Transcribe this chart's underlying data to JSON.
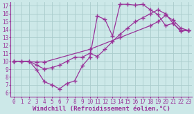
{
  "background_color": "#cce8e8",
  "grid_color": "#aacccc",
  "line_color": "#993399",
  "marker": "+",
  "markersize": 4,
  "linewidth": 0.9,
  "xlabel": "Windchill (Refroidissement éolien,°C)",
  "xlabel_fontsize": 6.5,
  "tick_fontsize": 5.5,
  "xlim": [
    -0.5,
    23.5
  ],
  "ylim": [
    5.5,
    17.5
  ],
  "xticks": [
    0,
    1,
    2,
    3,
    4,
    5,
    6,
    7,
    8,
    9,
    10,
    11,
    12,
    13,
    14,
    15,
    16,
    17,
    18,
    19,
    20,
    21,
    22,
    23
  ],
  "yticks": [
    6,
    7,
    8,
    9,
    10,
    11,
    12,
    13,
    14,
    15,
    16,
    17
  ],
  "lines": [
    {
      "x": [
        0,
        1,
        2,
        3,
        4,
        5,
        6,
        7,
        8,
        9,
        10,
        11,
        12,
        13,
        14,
        15,
        16,
        17,
        18,
        19,
        20,
        21,
        22,
        23
      ],
      "y": [
        10,
        10,
        10,
        8.9,
        7.4,
        7.0,
        6.5,
        7.2,
        7.5,
        9.4,
        10.5,
        15.7,
        15.3,
        13.2,
        17.2,
        17.2,
        17.1,
        17.2,
        16.5,
        15.9,
        14.5,
        14.8,
        13.8,
        13.9
      ]
    },
    {
      "x": [
        0,
        1,
        2,
        3,
        4,
        5,
        6,
        7,
        8,
        9,
        10,
        11,
        12,
        13,
        14,
        15,
        16,
        17,
        18,
        19,
        20,
        21,
        22,
        23
      ],
      "y": [
        10,
        10,
        10,
        9.5,
        9.0,
        9.2,
        9.5,
        10.0,
        10.5,
        10.5,
        11.0,
        10.6,
        11.5,
        12.5,
        13.4,
        14.2,
        15.0,
        15.5,
        16.0,
        16.5,
        16.0,
        14.8,
        13.9,
        13.9
      ]
    },
    {
      "x": [
        0,
        3,
        4,
        10,
        14,
        18,
        19,
        20,
        21,
        22,
        23
      ],
      "y": [
        10,
        9.9,
        9.9,
        11.5,
        13.0,
        14.5,
        15.0,
        15.8,
        15.2,
        14.2,
        13.9
      ]
    }
  ]
}
